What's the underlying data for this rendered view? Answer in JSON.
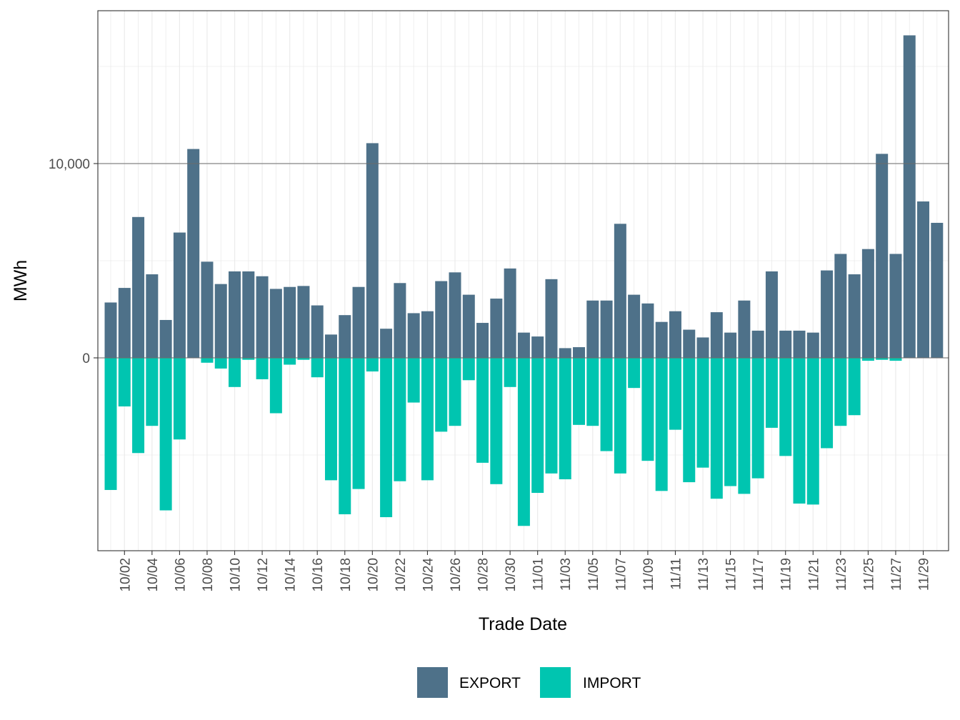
{
  "chart_data": {
    "type": "bar",
    "title": "",
    "xlabel": "Trade Date",
    "ylabel": "MWh",
    "ylim": [
      -9800,
      17900
    ],
    "y_ticks": [
      0,
      10000
    ],
    "y_tick_labels": [
      "0",
      "10,000"
    ],
    "x_tick_labels": [
      "10/02",
      "10/04",
      "10/06",
      "10/08",
      "10/10",
      "10/12",
      "10/14",
      "10/16",
      "10/18",
      "10/20",
      "10/22",
      "10/24",
      "10/26",
      "10/28",
      "10/30",
      "11/01",
      "11/03",
      "11/05",
      "11/07",
      "11/09",
      "11/11",
      "11/13",
      "11/15",
      "11/17",
      "11/19",
      "11/21",
      "11/23",
      "11/25",
      "11/27",
      "11/29"
    ],
    "grid": true,
    "legend_position": "bottom",
    "colors": {
      "EXPORT": "#4e7189",
      "IMPORT": "#00c5b0"
    },
    "categories": [
      "10/01",
      "10/02",
      "10/03",
      "10/04",
      "10/05",
      "10/06",
      "10/07",
      "10/08",
      "10/09",
      "10/10",
      "10/11",
      "10/12",
      "10/13",
      "10/14",
      "10/15",
      "10/16",
      "10/17",
      "10/18",
      "10/19",
      "10/20",
      "10/21",
      "10/22",
      "10/23",
      "10/24",
      "10/25",
      "10/26",
      "10/27",
      "10/28",
      "10/29",
      "10/30",
      "10/31",
      "11/01",
      "11/02",
      "11/03",
      "11/04",
      "11/05",
      "11/06",
      "11/07",
      "11/08",
      "11/09",
      "11/10",
      "11/11",
      "11/12",
      "11/13",
      "11/14",
      "11/15",
      "11/16",
      "11/17",
      "11/18",
      "11/19",
      "11/20",
      "11/21",
      "11/22",
      "11/23",
      "11/24",
      "11/25",
      "11/26",
      "11/27",
      "11/28",
      "11/29",
      "11/30"
    ],
    "series": [
      {
        "name": "EXPORT",
        "values": [
          2850,
          3600,
          7250,
          4300,
          1950,
          6450,
          10750,
          4950,
          3800,
          4450,
          4450,
          4200,
          3550,
          3650,
          3700,
          2700,
          1200,
          2200,
          3650,
          11050,
          1500,
          3850,
          2300,
          2400,
          3950,
          4400,
          3250,
          1800,
          3050,
          4600,
          1300,
          1100,
          4050,
          500,
          550,
          2950,
          2950,
          6900,
          3250,
          2800,
          1850,
          2400,
          1450,
          1050,
          2350,
          1300,
          2950,
          1400,
          4450,
          1400,
          1400,
          1300,
          4500,
          5350,
          4300,
          5600,
          10500,
          5350,
          16600,
          8050,
          6950
        ]
      },
      {
        "name": "IMPORT",
        "values": [
          -6800,
          -2500,
          -4900,
          -3500,
          -7850,
          -4200,
          0,
          -250,
          -550,
          -1500,
          -100,
          -1100,
          -2850,
          -350,
          -100,
          -1000,
          -6300,
          -8050,
          -6750,
          -700,
          -8200,
          -6350,
          -2300,
          -6300,
          -3800,
          -3500,
          -1150,
          -5400,
          -6500,
          -1500,
          -8650,
          -6950,
          -5950,
          -6250,
          -3450,
          -3500,
          -4800,
          -5950,
          -1550,
          -5300,
          -6850,
          -3700,
          -6400,
          -5650,
          -7250,
          -6600,
          -7000,
          -6200,
          -3600,
          -5050,
          -7500,
          -7550,
          -4650,
          -3500,
          -2950,
          -150,
          -100,
          -150,
          0,
          0,
          0
        ]
      }
    ]
  },
  "legend": {
    "items": [
      {
        "label": "EXPORT",
        "color": "#4e7189"
      },
      {
        "label": "IMPORT",
        "color": "#00c5b0"
      }
    ]
  }
}
